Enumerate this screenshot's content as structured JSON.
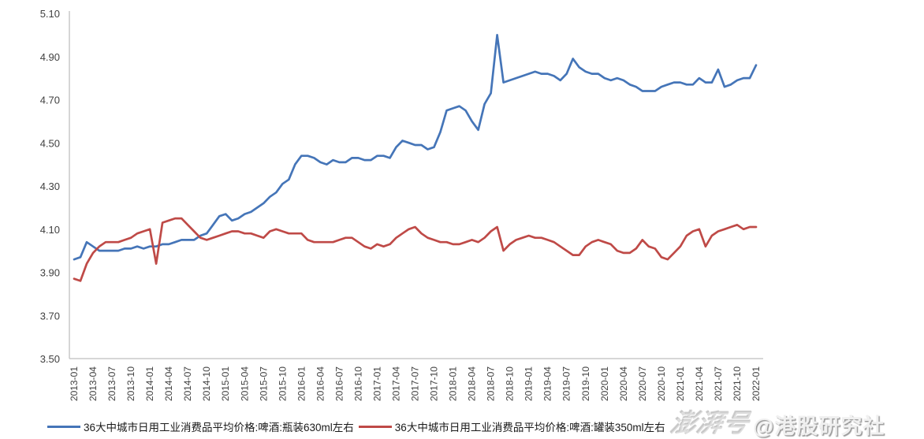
{
  "watermarks": {
    "platform_logo": "澎湃号",
    "credit": "@港股研究社"
  },
  "chart_data": {
    "type": "line",
    "title": "",
    "xlabel": "",
    "ylabel": "",
    "ylim": [
      3.5,
      5.1
    ],
    "y_tick_labels": [
      "5.10",
      "4.90",
      "4.70",
      "4.50",
      "4.30",
      "4.10",
      "3.90",
      "3.70",
      "3.50"
    ],
    "x_tick_every_n_months": 3,
    "grid": false,
    "legend_position": "bottom",
    "axis_color": "#bfbfbf",
    "x": [
      "2013-01",
      "2013-02",
      "2013-03",
      "2013-04",
      "2013-05",
      "2013-06",
      "2013-07",
      "2013-08",
      "2013-09",
      "2013-10",
      "2013-11",
      "2013-12",
      "2014-01",
      "2014-02",
      "2014-03",
      "2014-04",
      "2014-05",
      "2014-06",
      "2014-07",
      "2014-08",
      "2014-09",
      "2014-10",
      "2014-11",
      "2014-12",
      "2015-01",
      "2015-02",
      "2015-03",
      "2015-04",
      "2015-05",
      "2015-06",
      "2015-07",
      "2015-08",
      "2015-09",
      "2015-10",
      "2015-11",
      "2015-12",
      "2016-01",
      "2016-02",
      "2016-03",
      "2016-04",
      "2016-05",
      "2016-06",
      "2016-07",
      "2016-08",
      "2016-09",
      "2016-10",
      "2016-11",
      "2016-12",
      "2017-01",
      "2017-02",
      "2017-03",
      "2017-04",
      "2017-05",
      "2017-06",
      "2017-07",
      "2017-08",
      "2017-09",
      "2017-10",
      "2017-11",
      "2017-12",
      "2018-01",
      "2018-02",
      "2018-03",
      "2018-04",
      "2018-05",
      "2018-06",
      "2018-07",
      "2018-08",
      "2018-09",
      "2018-10",
      "2018-11",
      "2018-12",
      "2019-01",
      "2019-02",
      "2019-03",
      "2019-04",
      "2019-05",
      "2019-06",
      "2019-07",
      "2019-08",
      "2019-09",
      "2019-10",
      "2019-11",
      "2019-12",
      "2020-01",
      "2020-02",
      "2020-03",
      "2020-04",
      "2020-05",
      "2020-06",
      "2020-07",
      "2020-08",
      "2020-09",
      "2020-10",
      "2020-11",
      "2020-12",
      "2021-01",
      "2021-02",
      "2021-03",
      "2021-04",
      "2021-05",
      "2021-06",
      "2021-07",
      "2021-08",
      "2021-09",
      "2021-10",
      "2021-11",
      "2021-12",
      "2022-01"
    ],
    "series": [
      {
        "name": "36大中城市日用工业消费品平均价格:啤酒:瓶装630ml左右",
        "color": "#4575b8",
        "values": [
          3.96,
          3.97,
          4.04,
          4.02,
          4.0,
          4.0,
          4.0,
          4.0,
          4.01,
          4.01,
          4.02,
          4.01,
          4.02,
          4.02,
          4.03,
          4.03,
          4.04,
          4.05,
          4.05,
          4.05,
          4.07,
          4.08,
          4.12,
          4.16,
          4.17,
          4.14,
          4.15,
          4.17,
          4.18,
          4.2,
          4.22,
          4.25,
          4.27,
          4.31,
          4.33,
          4.4,
          4.44,
          4.44,
          4.43,
          4.41,
          4.4,
          4.42,
          4.41,
          4.41,
          4.43,
          4.43,
          4.42,
          4.42,
          4.44,
          4.44,
          4.43,
          4.48,
          4.51,
          4.5,
          4.49,
          4.49,
          4.47,
          4.48,
          4.55,
          4.65,
          4.66,
          4.67,
          4.65,
          4.6,
          4.56,
          4.68,
          4.73,
          5.0,
          4.78,
          4.79,
          4.8,
          4.81,
          4.82,
          4.83,
          4.82,
          4.82,
          4.81,
          4.79,
          4.82,
          4.89,
          4.85,
          4.83,
          4.82,
          4.82,
          4.8,
          4.79,
          4.8,
          4.79,
          4.77,
          4.76,
          4.74,
          4.74,
          4.74,
          4.76,
          4.77,
          4.78,
          4.78,
          4.77,
          4.77,
          4.8,
          4.78,
          4.78,
          4.84,
          4.76,
          4.77,
          4.79,
          4.8,
          4.8,
          4.86
        ]
      },
      {
        "name": "36大中城市日用工业消费品平均价格:啤酒:罐装350ml左右",
        "color": "#bf4a47",
        "values": [
          3.87,
          3.86,
          3.94,
          3.99,
          4.02,
          4.04,
          4.04,
          4.04,
          4.05,
          4.06,
          4.08,
          4.09,
          4.1,
          3.94,
          4.13,
          4.14,
          4.15,
          4.15,
          4.12,
          4.09,
          4.06,
          4.05,
          4.06,
          4.07,
          4.08,
          4.09,
          4.09,
          4.08,
          4.08,
          4.07,
          4.06,
          4.09,
          4.1,
          4.09,
          4.08,
          4.08,
          4.08,
          4.05,
          4.04,
          4.04,
          4.04,
          4.04,
          4.05,
          4.06,
          4.06,
          4.04,
          4.02,
          4.01,
          4.03,
          4.02,
          4.03,
          4.06,
          4.08,
          4.1,
          4.11,
          4.08,
          4.06,
          4.05,
          4.04,
          4.04,
          4.03,
          4.03,
          4.04,
          4.05,
          4.04,
          4.06,
          4.09,
          4.11,
          4.0,
          4.03,
          4.05,
          4.06,
          4.07,
          4.06,
          4.06,
          4.05,
          4.04,
          4.02,
          4.0,
          3.98,
          3.98,
          4.02,
          4.04,
          4.05,
          4.04,
          4.03,
          4.0,
          3.99,
          3.99,
          4.01,
          4.05,
          4.02,
          4.01,
          3.97,
          3.96,
          3.99,
          4.02,
          4.07,
          4.09,
          4.1,
          4.02,
          4.07,
          4.09,
          4.1,
          4.11,
          4.12,
          4.1,
          4.11,
          4.11
        ]
      }
    ]
  }
}
